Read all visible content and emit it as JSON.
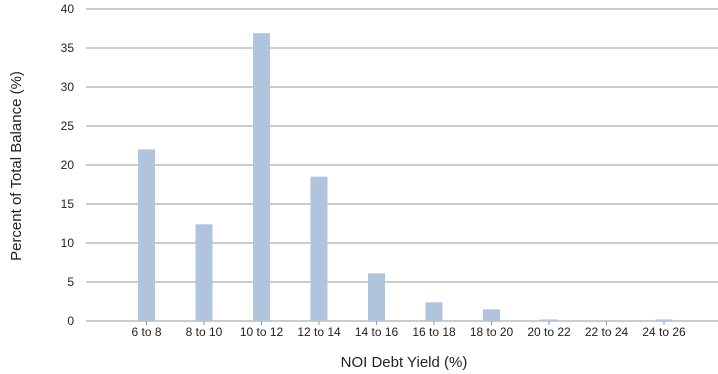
{
  "chart_data": {
    "type": "bar",
    "title": "",
    "xlabel": "NOI Debt Yield (%)",
    "ylabel": "Percent of Total Balance (%)",
    "categories": [
      "6 to 8",
      "8 to 10",
      "10 to 12",
      "12 to 14",
      "14 to 16",
      "16 to 18",
      "18 to 20",
      "20 to 22",
      "22 to 24",
      "24 to 26"
    ],
    "values": [
      22.0,
      12.4,
      36.9,
      18.5,
      6.1,
      2.4,
      1.5,
      0.2,
      0,
      0.2
    ],
    "ylim": [
      0,
      40
    ],
    "yticks": [
      0,
      5,
      10,
      15,
      20,
      25,
      30,
      35,
      40
    ],
    "grid": true,
    "bar_color": "#b0c4de",
    "grid_color": "#9a9a9a"
  }
}
